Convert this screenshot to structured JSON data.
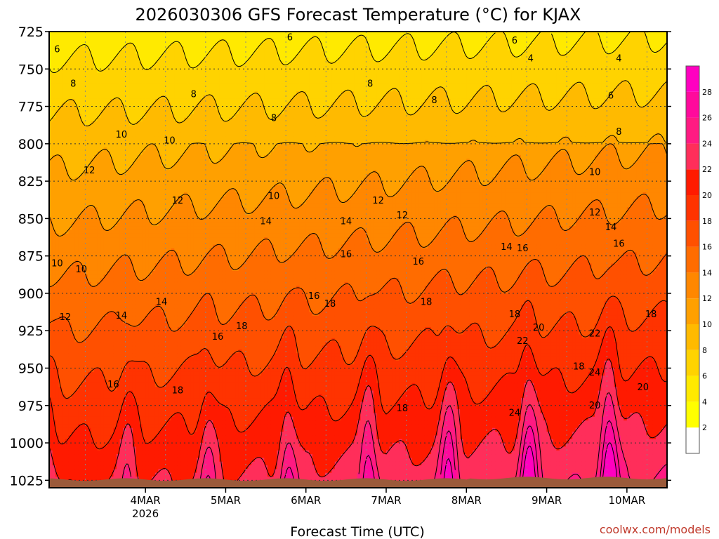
{
  "chart_data": {
    "type": "heatmap",
    "title": "2026030306 GFS Forecast Temperature (°C) for KJAX",
    "xlabel": "Forecast Time (UTC)",
    "ylabel": "",
    "credit": "coolwx.com/models",
    "x_ticks": [
      {
        "label": "4MAR",
        "sub": "2026",
        "day": 1
      },
      {
        "label": "5MAR",
        "sub": "",
        "day": 2
      },
      {
        "label": "6MAR",
        "sub": "",
        "day": 3
      },
      {
        "label": "7MAR",
        "sub": "",
        "day": 4
      },
      {
        "label": "8MAR",
        "sub": "",
        "day": 5
      },
      {
        "label": "9MAR",
        "sub": "",
        "day": 6
      },
      {
        "label": "10MAR",
        "sub": "",
        "day": 7
      }
    ],
    "xlim_days": [
      -0.2,
      7.5
    ],
    "y_ticks": [
      725,
      750,
      775,
      800,
      825,
      850,
      875,
      900,
      925,
      950,
      975,
      1000,
      1025
    ],
    "ylim": [
      725,
      1030
    ],
    "y_axis": "pressure-hPa-increasing-downward",
    "colorbar": {
      "ticks": [
        2,
        4,
        6,
        8,
        10,
        12,
        14,
        16,
        18,
        20,
        22,
        24,
        26,
        28
      ],
      "range": [
        0,
        30
      ],
      "colors": [
        {
          "from": 0,
          "color": "#ffffff"
        },
        {
          "from": 2,
          "color": "#ffff00"
        },
        {
          "from": 4,
          "color": "#ffea00"
        },
        {
          "from": 6,
          "color": "#ffd300"
        },
        {
          "from": 8,
          "color": "#ffba00"
        },
        {
          "from": 10,
          "color": "#ffa000"
        },
        {
          "from": 12,
          "color": "#ff8700"
        },
        {
          "from": 14,
          "color": "#ff6c00"
        },
        {
          "from": 16,
          "color": "#ff5000"
        },
        {
          "from": 18,
          "color": "#ff3300"
        },
        {
          "from": 20,
          "color": "#ff1a00"
        },
        {
          "from": 22,
          "color": "#ff2e5a"
        },
        {
          "from": 24,
          "color": "#ff1a82"
        },
        {
          "from": 26,
          "color": "#ff0a9c"
        },
        {
          "from": 28,
          "color": "#ff00c0"
        }
      ]
    },
    "contour_interval": 2,
    "contour_labels": [
      {
        "text": "6",
        "day": -0.1,
        "p": 737
      },
      {
        "text": "6",
        "day": 2.8,
        "p": 729
      },
      {
        "text": "6",
        "day": 5.6,
        "p": 731
      },
      {
        "text": "6",
        "day": 6.8,
        "p": 768
      },
      {
        "text": "4",
        "day": 5.8,
        "p": 743
      },
      {
        "text": "4",
        "day": 6.9,
        "p": 743
      },
      {
        "text": "8",
        "day": 0.1,
        "p": 760
      },
      {
        "text": "8",
        "day": 1.6,
        "p": 767
      },
      {
        "text": "8",
        "day": 2.6,
        "p": 783
      },
      {
        "text": "8",
        "day": 3.8,
        "p": 760
      },
      {
        "text": "8",
        "day": 4.6,
        "p": 771
      },
      {
        "text": "8",
        "day": 6.9,
        "p": 792
      },
      {
        "text": "10",
        "day": 0.7,
        "p": 794
      },
      {
        "text": "10",
        "day": 1.3,
        "p": 798
      },
      {
        "text": "10",
        "day": 2.6,
        "p": 835
      },
      {
        "text": "10",
        "day": 6.6,
        "p": 819
      },
      {
        "text": "10",
        "day": -0.1,
        "p": 880
      },
      {
        "text": "10",
        "day": 0.2,
        "p": 884
      },
      {
        "text": "12",
        "day": 0.3,
        "p": 818
      },
      {
        "text": "12",
        "day": 1.4,
        "p": 838
      },
      {
        "text": "12",
        "day": 3.9,
        "p": 838
      },
      {
        "text": "12",
        "day": 4.2,
        "p": 848
      },
      {
        "text": "12",
        "day": 6.6,
        "p": 846
      },
      {
        "text": "12",
        "day": 0.0,
        "p": 916
      },
      {
        "text": "14",
        "day": 2.5,
        "p": 852
      },
      {
        "text": "14",
        "day": 3.5,
        "p": 852
      },
      {
        "text": "14",
        "day": 5.5,
        "p": 869
      },
      {
        "text": "14",
        "day": 6.8,
        "p": 856
      },
      {
        "text": "14",
        "day": 1.2,
        "p": 906
      },
      {
        "text": "14",
        "day": 0.7,
        "p": 915
      },
      {
        "text": "16",
        "day": 3.5,
        "p": 874
      },
      {
        "text": "16",
        "day": 4.4,
        "p": 879
      },
      {
        "text": "16",
        "day": 5.7,
        "p": 870
      },
      {
        "text": "16",
        "day": 6.9,
        "p": 867
      },
      {
        "text": "16",
        "day": 3.1,
        "p": 902
      },
      {
        "text": "16",
        "day": 1.9,
        "p": 929
      },
      {
        "text": "16",
        "day": 0.6,
        "p": 961
      },
      {
        "text": "18",
        "day": 3.3,
        "p": 907
      },
      {
        "text": "18",
        "day": 4.5,
        "p": 906
      },
      {
        "text": "18",
        "day": 5.6,
        "p": 914
      },
      {
        "text": "18",
        "day": 7.3,
        "p": 914
      },
      {
        "text": "18",
        "day": 2.2,
        "p": 922
      },
      {
        "text": "18",
        "day": 6.4,
        "p": 949
      },
      {
        "text": "18",
        "day": 1.4,
        "p": 965
      },
      {
        "text": "18",
        "day": 4.2,
        "p": 977
      },
      {
        "text": "20",
        "day": 5.9,
        "p": 923
      },
      {
        "text": "20",
        "day": 7.2,
        "p": 963
      },
      {
        "text": "20",
        "day": 6.6,
        "p": 975
      },
      {
        "text": "22",
        "day": 5.7,
        "p": 932
      },
      {
        "text": "22",
        "day": 6.6,
        "p": 927
      },
      {
        "text": "24",
        "day": 6.6,
        "p": 953
      },
      {
        "text": "24",
        "day": 5.6,
        "p": 980
      }
    ]
  }
}
